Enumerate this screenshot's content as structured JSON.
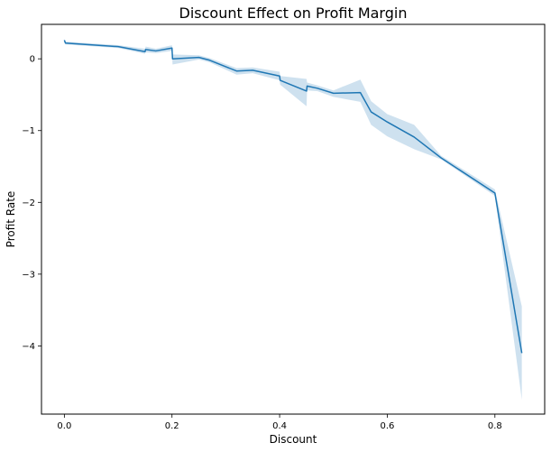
{
  "chart_data": {
    "type": "line",
    "title": "Discount Effect on Profit Margin",
    "xlabel": "Discount",
    "ylabel": "Profit Rate",
    "xlim": [
      -0.0425,
      0.8925
    ],
    "ylim": [
      -4.95,
      0.48
    ],
    "xticks": [
      0.0,
      0.2,
      0.4,
      0.6,
      0.8
    ],
    "xtick_labels": [
      "0.0",
      "0.2",
      "0.4",
      "0.6",
      "0.8"
    ],
    "yticks": [
      0,
      -1,
      -2,
      -3,
      -4
    ],
    "ytick_labels": [
      "0",
      "−1",
      "−2",
      "−3",
      "−4"
    ],
    "grid": false,
    "legend": "none",
    "series": [
      {
        "color": "#1f77b4",
        "band_color": "#1f77b4",
        "x": [
          0.0,
          0.002,
          0.1,
          0.15,
          0.151,
          0.17,
          0.2,
          0.201,
          0.25,
          0.27,
          0.32,
          0.35,
          0.4,
          0.401,
          0.45,
          0.451,
          0.47,
          0.5,
          0.55,
          0.57,
          0.6,
          0.65,
          0.7,
          0.8,
          0.85
        ],
        "y": [
          0.26,
          0.22,
          0.17,
          0.1,
          0.13,
          0.11,
          0.15,
          0.0,
          0.02,
          -0.02,
          -0.17,
          -0.16,
          -0.24,
          -0.3,
          -0.45,
          -0.38,
          -0.41,
          -0.48,
          -0.47,
          -0.74,
          -0.88,
          -1.09,
          -1.38,
          -1.87,
          -4.1
        ],
        "lower": [
          0.25,
          0.2,
          0.15,
          0.07,
          0.09,
          0.08,
          0.11,
          -0.08,
          -0.01,
          -0.05,
          -0.22,
          -0.2,
          -0.3,
          -0.36,
          -0.66,
          -0.44,
          -0.45,
          -0.53,
          -0.6,
          -0.92,
          -1.08,
          -1.26,
          -1.4,
          -1.91,
          -4.75
        ],
        "upper": [
          0.27,
          0.24,
          0.19,
          0.14,
          0.17,
          0.14,
          0.19,
          0.06,
          0.05,
          0.01,
          -0.13,
          -0.12,
          -0.18,
          -0.24,
          -0.28,
          -0.33,
          -0.37,
          -0.44,
          -0.29,
          -0.59,
          -0.77,
          -0.92,
          -1.35,
          -1.82,
          -3.45
        ]
      }
    ]
  }
}
